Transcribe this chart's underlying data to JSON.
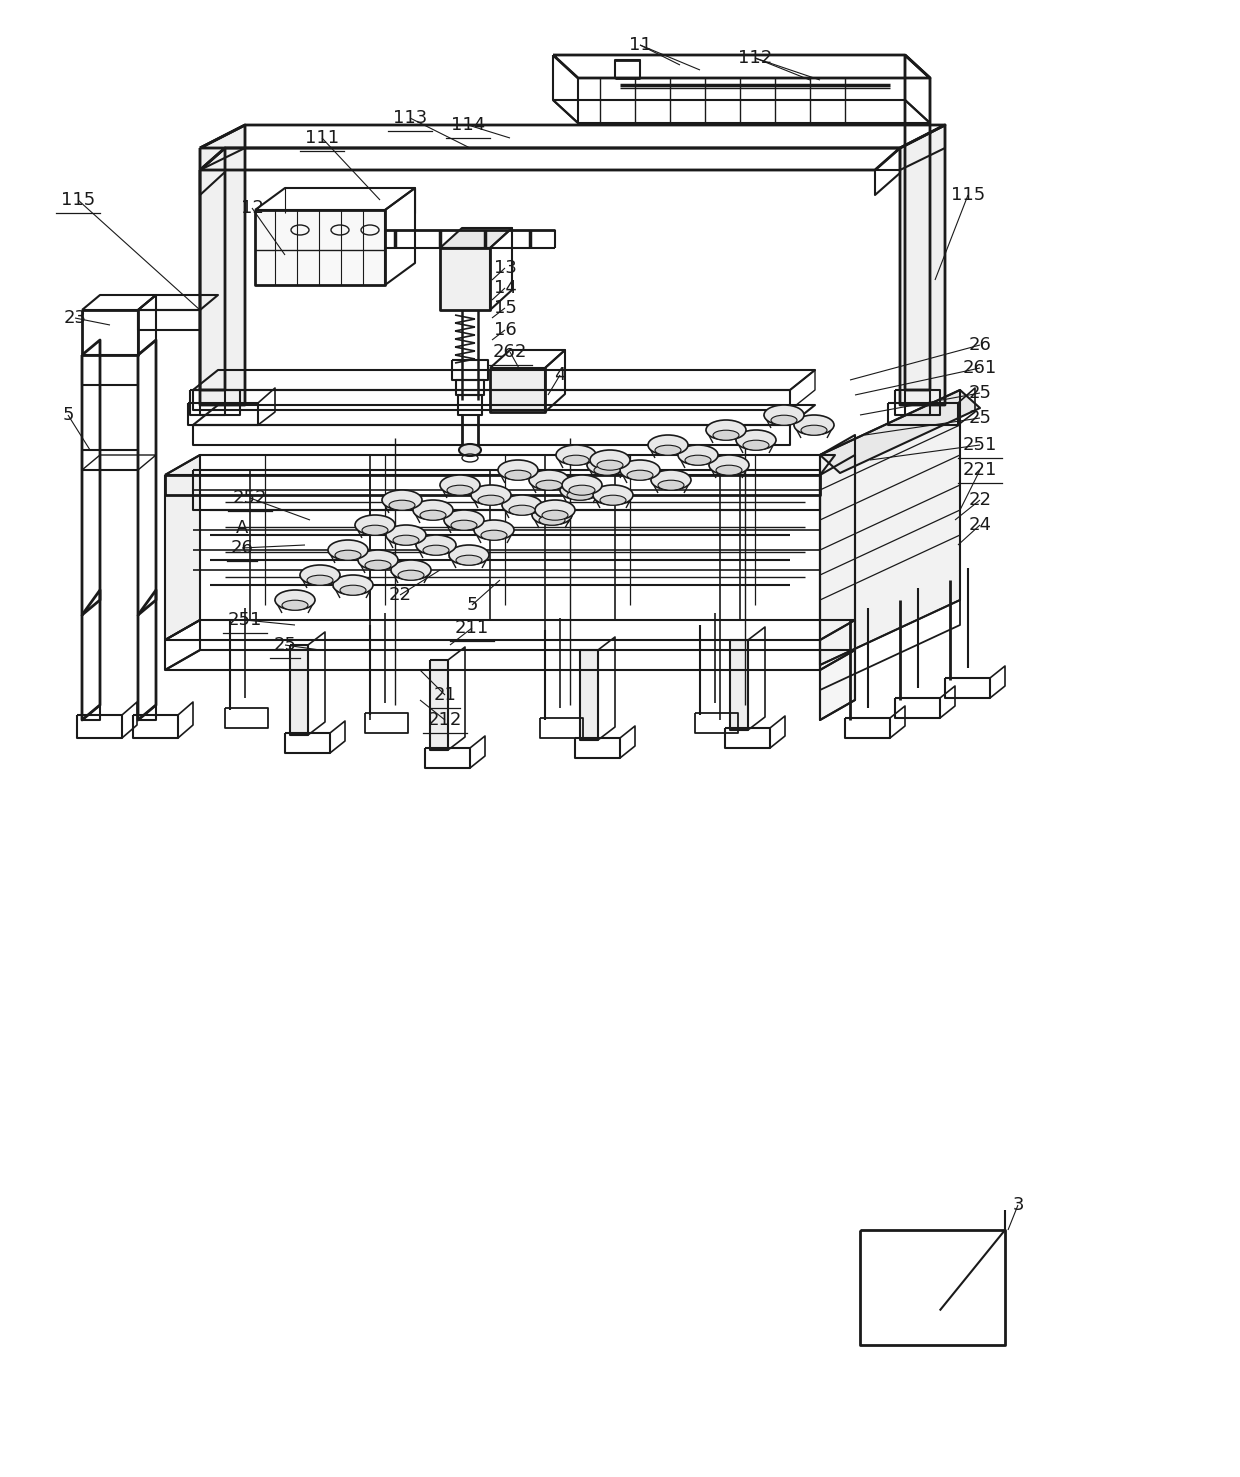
{
  "bg_color": "#ffffff",
  "line_color": "#1a1a1a",
  "fig_width": 12.4,
  "fig_height": 14.77,
  "dpi": 100
}
